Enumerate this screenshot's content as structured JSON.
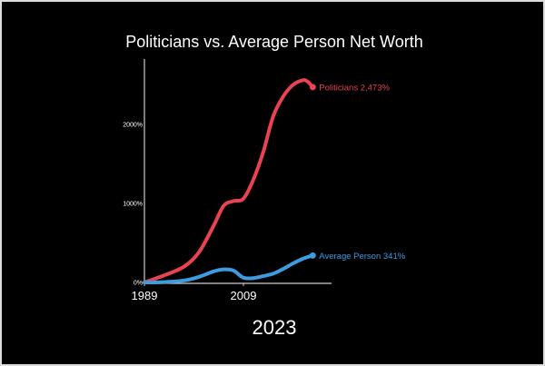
{
  "chart_data": {
    "type": "line",
    "title": "Politicians vs. Average Person Net Worth",
    "xlabel": "",
    "ylabel": "",
    "x_ticks": [
      "1989",
      "2009"
    ],
    "y_ticks": [
      "0%",
      "1000%",
      "2000%"
    ],
    "xlim": [
      1989,
      2027
    ],
    "ylim": [
      0,
      2800
    ],
    "grid": false,
    "current_year_label": "2023",
    "series": [
      {
        "name": "Politicians",
        "end_label": "Politicians 2,473%",
        "color": "#e8434f",
        "x": [
          1989,
          1993,
          1997,
          2000,
          2003,
          2005,
          2007,
          2009,
          2011,
          2013,
          2015,
          2017,
          2019,
          2021,
          2022,
          2023
        ],
        "values": [
          0,
          90,
          200,
          380,
          720,
          970,
          1030,
          1060,
          1300,
          1650,
          2100,
          2350,
          2500,
          2560,
          2540,
          2473
        ]
      },
      {
        "name": "Average Person",
        "end_label": "Average Person 341%",
        "color": "#3d9be0",
        "x": [
          1989,
          1993,
          1997,
          2000,
          2003,
          2005,
          2007,
          2009,
          2011,
          2013,
          2015,
          2017,
          2019,
          2021,
          2023
        ],
        "values": [
          0,
          5,
          25,
          70,
          140,
          165,
          150,
          60,
          55,
          80,
          110,
          170,
          240,
          300,
          341
        ]
      }
    ]
  }
}
